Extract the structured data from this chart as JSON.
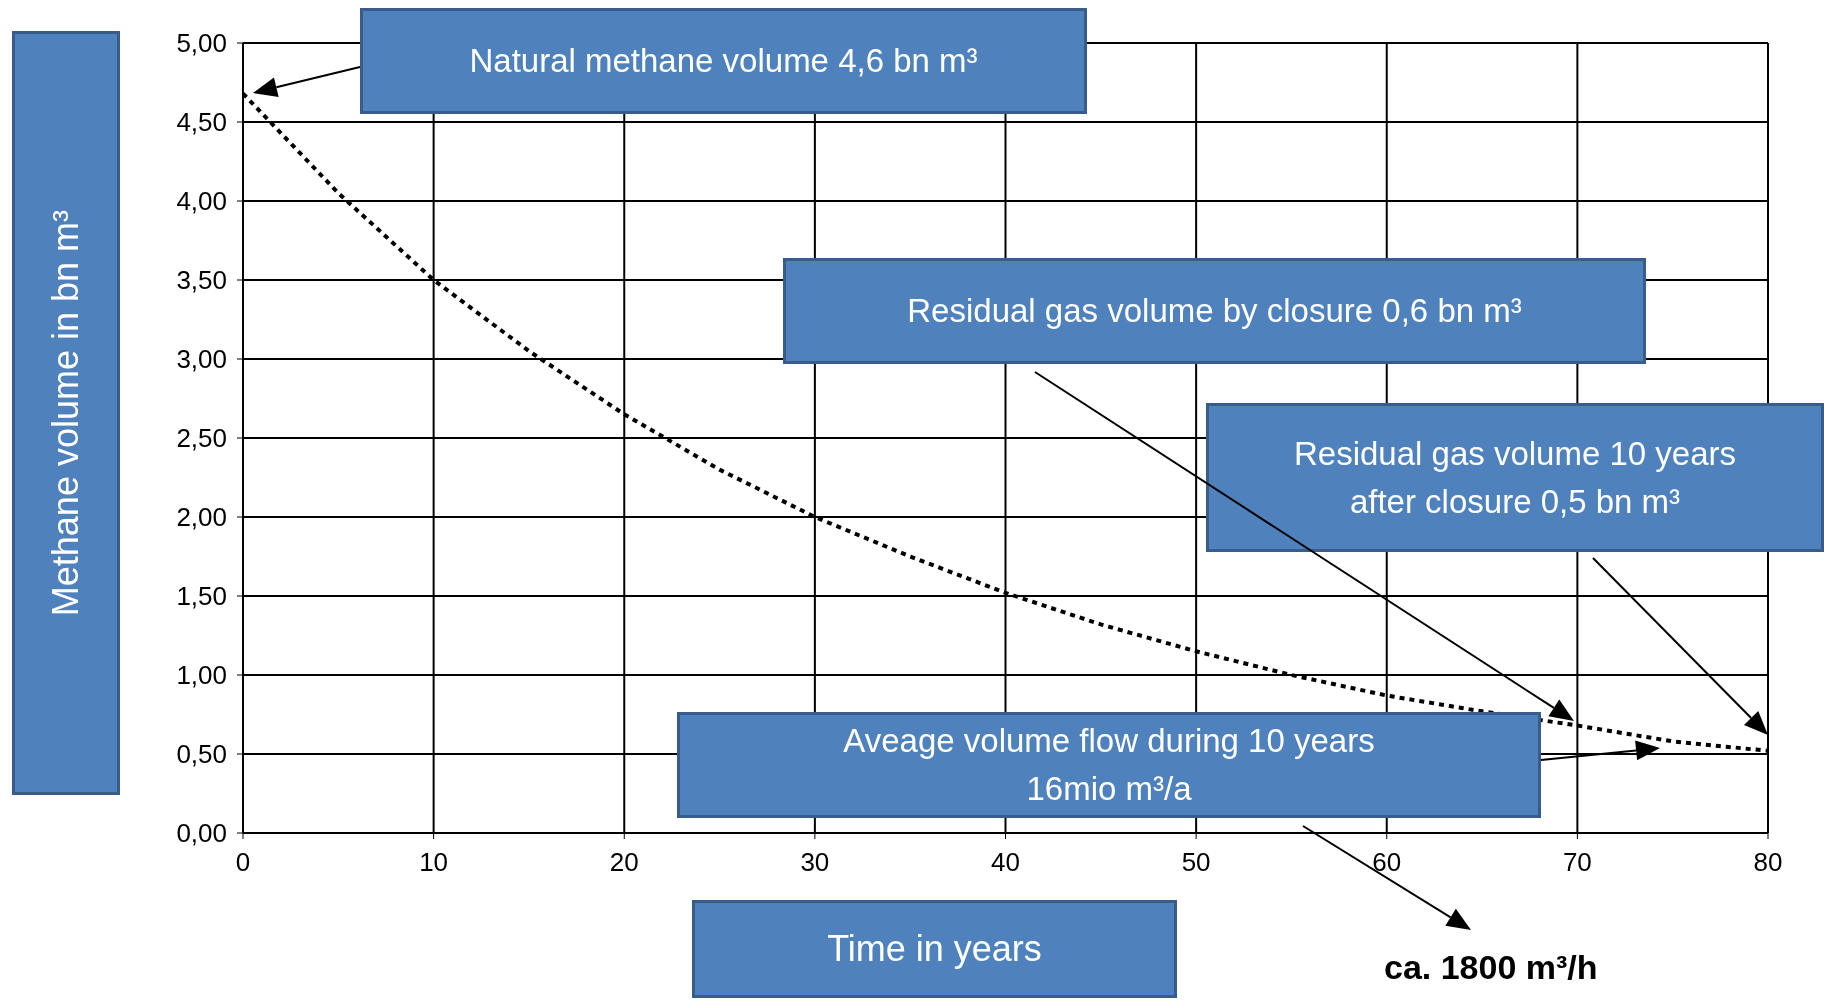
{
  "chart_data": {
    "type": "line",
    "xlabel": "Time in years",
    "ylabel": "Methane volume in bn m³",
    "series": [
      {
        "color": "#000000",
        "x": [
          0,
          5,
          10,
          15,
          20,
          25,
          30,
          35,
          40,
          45,
          50,
          55,
          60,
          65,
          70,
          75,
          80
        ],
        "values": [
          4.68,
          4.05,
          3.5,
          3.05,
          2.65,
          2.3,
          2.0,
          1.75,
          1.52,
          1.32,
          1.15,
          1.0,
          0.87,
          0.77,
          0.68,
          0.58,
          0.52
        ]
      }
    ],
    "xlim": [
      0,
      80
    ],
    "xticks": [
      0,
      10,
      20,
      30,
      40,
      50,
      60,
      70,
      80
    ],
    "ylim": [
      0,
      5
    ],
    "yticks": [
      {
        "value": 0,
        "label": "0,00"
      },
      {
        "value": 0.5,
        "label": "0,50"
      },
      {
        "value": 1,
        "label": "1,00"
      },
      {
        "value": 1.5,
        "label": "1,50"
      },
      {
        "value": 2,
        "label": "2,00"
      },
      {
        "value": 2.5,
        "label": "2,50"
      },
      {
        "value": 3,
        "label": "3,00"
      },
      {
        "value": 3.5,
        "label": "3,50"
      },
      {
        "value": 4,
        "label": "4,00"
      },
      {
        "value": 4.5,
        "label": "4,50"
      },
      {
        "value": 5,
        "label": "5,00"
      }
    ],
    "grid": true,
    "marker": "none",
    "line_style": "dotted",
    "annotations": [
      "Natural methane volume 4,6 bn m³",
      "Residual gas volume by closure 0,6 bn m³",
      "Residual gas volume 10 years after closure 0,5 bn m³",
      "Aveage volume flow during 10 years 16mio m³/a",
      "ca. 1800 m³/h"
    ]
  }
}
